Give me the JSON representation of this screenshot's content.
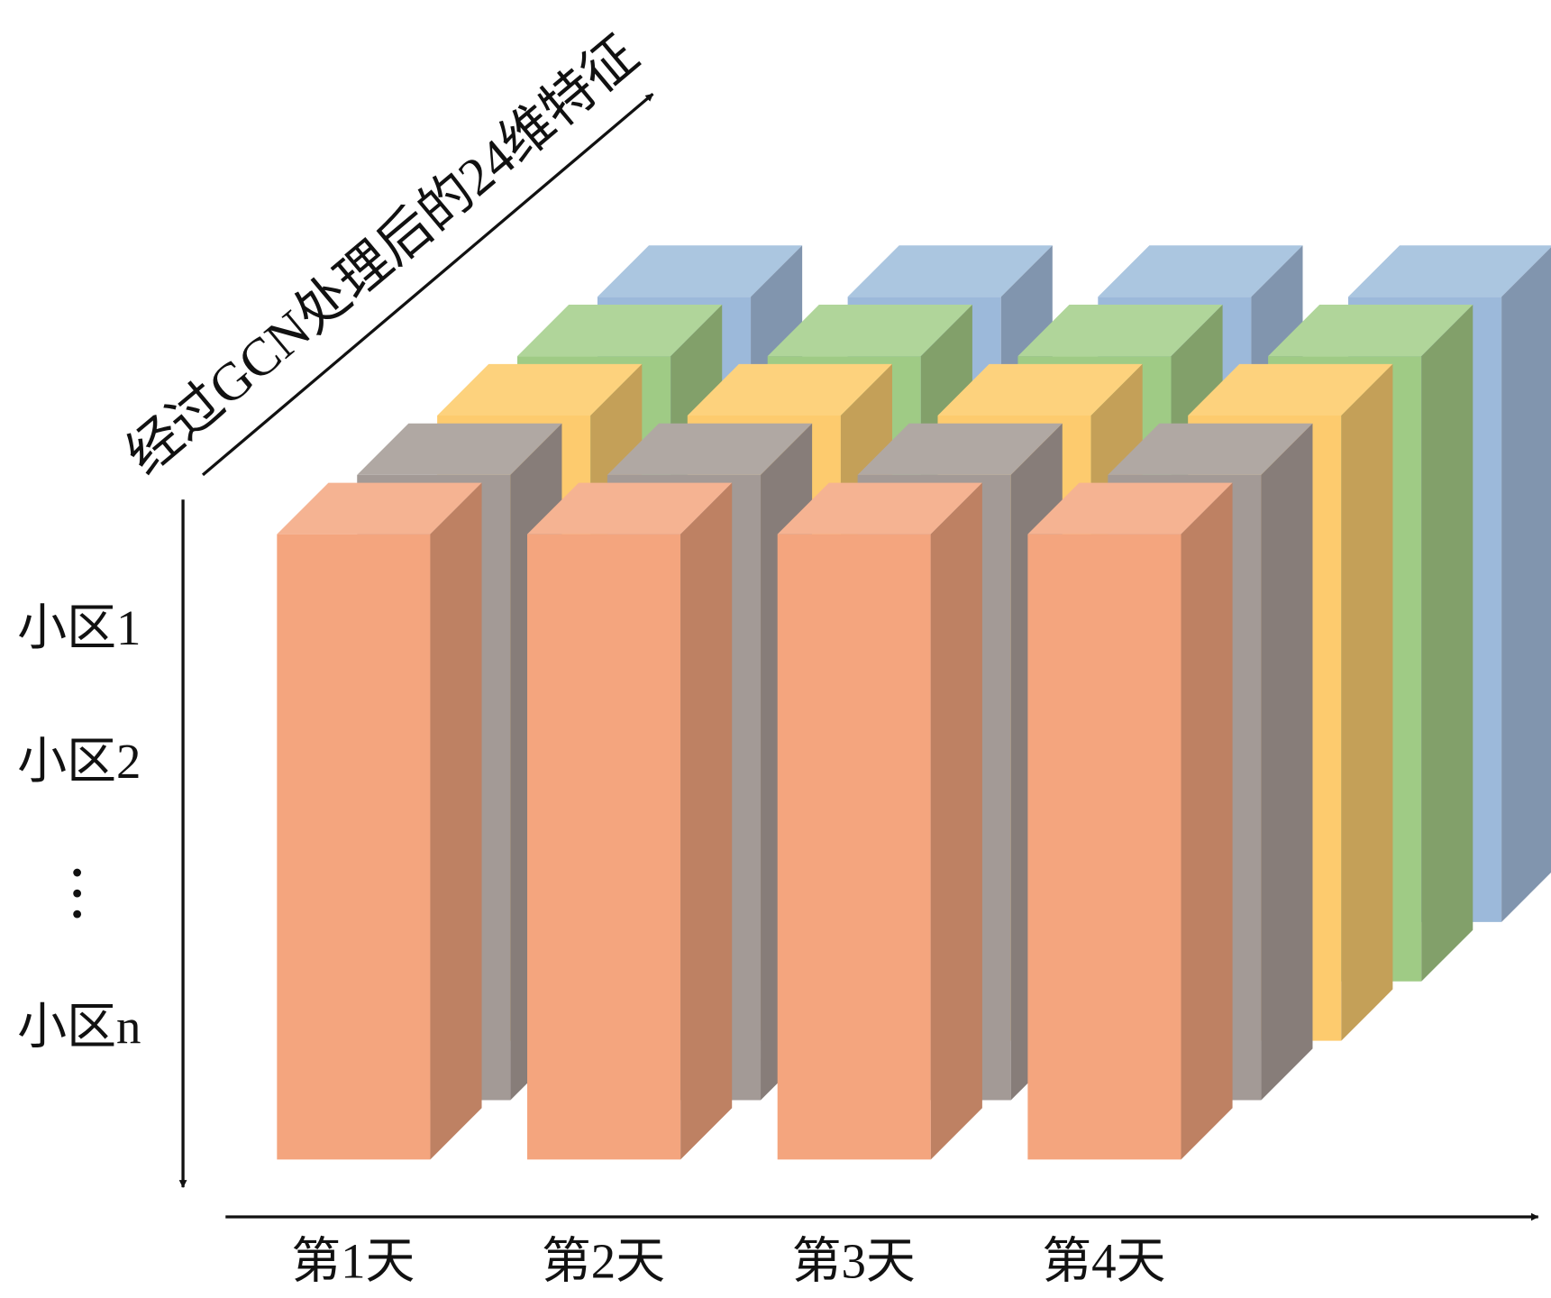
{
  "axis_label": "经过GCN处理后的24维特征",
  "rows": [
    "小区1",
    "小区2",
    "小区n"
  ],
  "days": [
    "第1天",
    "第2天",
    "第3天",
    "第4天"
  ]
}
